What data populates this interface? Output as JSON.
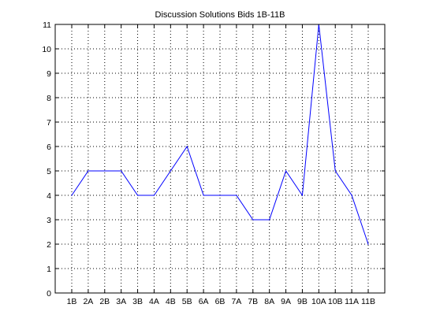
{
  "chart_data": {
    "type": "line",
    "title": "Discussion Solutions Bids 1B-11B",
    "xlabel": "",
    "ylabel": "",
    "categories": [
      "1B",
      "2A",
      "2B",
      "3A",
      "3B",
      "4A",
      "4B",
      "5B",
      "6A",
      "6B",
      "7A",
      "7B",
      "8A",
      "9A",
      "9B",
      "10A",
      "10B",
      "11A",
      "11B"
    ],
    "series": [
      {
        "values": [
          4,
          5,
          5,
          5,
          4,
          4,
          5,
          6,
          4,
          4,
          4,
          3,
          3,
          5,
          4,
          11,
          5,
          4,
          2
        ]
      }
    ],
    "ylim": [
      0,
      11
    ],
    "yticks": [
      0,
      1,
      2,
      3,
      4,
      5,
      6,
      7,
      8,
      9,
      10,
      11
    ],
    "grid": true,
    "line_color": "#0000ff",
    "grid_color": "#000000"
  }
}
